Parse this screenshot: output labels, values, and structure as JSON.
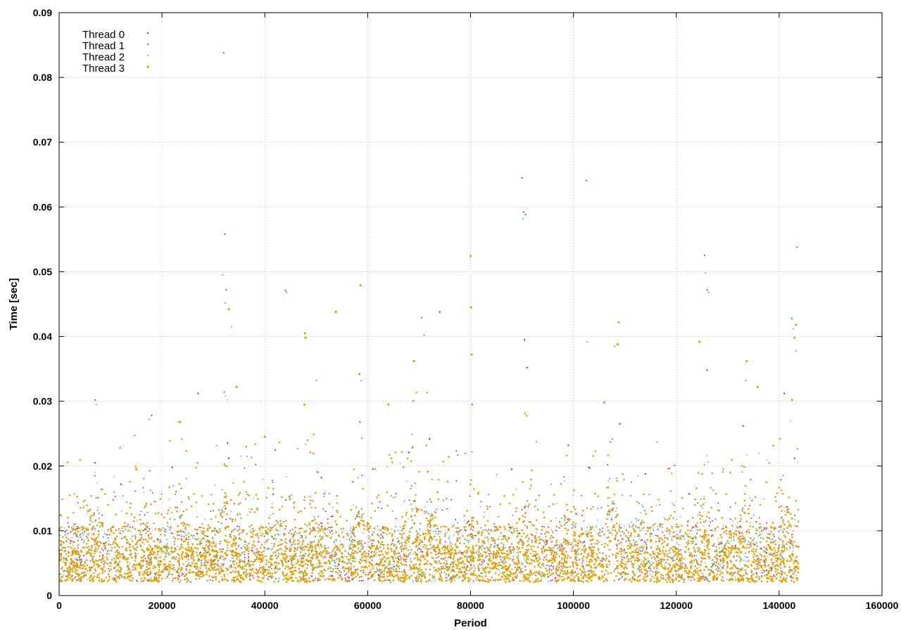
{
  "chart_data": {
    "type": "scatter",
    "title": "",
    "xlabel": "Period",
    "ylabel": "Time [sec]",
    "xlim": [
      0,
      160000
    ],
    "ylim": [
      0,
      0.09
    ],
    "x_ticks": [
      0,
      20000,
      40000,
      60000,
      80000,
      100000,
      120000,
      140000,
      160000
    ],
    "y_ticks": [
      0,
      0.01,
      0.02,
      0.03,
      0.04,
      0.05,
      0.06,
      0.07,
      0.08,
      0.09
    ],
    "x_tick_labels": [
      "0",
      "20000",
      "40000",
      "60000",
      "80000",
      "100000",
      "120000",
      "140000",
      "160000"
    ],
    "y_tick_labels": [
      "0",
      "0.01",
      "0.02",
      "0.03",
      "0.04",
      "0.05",
      "0.06",
      "0.07",
      "0.08",
      "0.09"
    ],
    "grid": true,
    "legend_position": "top-left",
    "series": [
      {
        "name": "Thread 0",
        "color": "#9400d3",
        "points": [
          [
            7000,
            0.0205
          ],
          [
            12000,
            0.0172
          ],
          [
            22000,
            0.0198
          ],
          [
            27000,
            0.0312
          ],
          [
            33000,
            0.0212
          ],
          [
            42000,
            0.0225
          ],
          [
            51000,
            0.0182
          ],
          [
            61000,
            0.0195
          ],
          [
            68000,
            0.0221
          ],
          [
            72000,
            0.0242
          ],
          [
            74000,
            0.0438
          ],
          [
            88000,
            0.0195
          ],
          [
            90500,
            0.0395
          ],
          [
            91000,
            0.0352
          ],
          [
            99000,
            0.0232
          ],
          [
            103000,
            0.0198
          ],
          [
            109000,
            0.0265
          ],
          [
            114000,
            0.0188
          ],
          [
            126000,
            0.0348
          ],
          [
            133000,
            0.0262
          ],
          [
            141000,
            0.0312
          ],
          [
            143000,
            0.0212
          ]
        ]
      },
      {
        "name": "Thread 1",
        "color": "#009e73",
        "points": [
          [
            7000,
            0.0302
          ],
          [
            18000,
            0.0278
          ],
          [
            32000,
            0.0838
          ],
          [
            32200,
            0.0558
          ],
          [
            32500,
            0.0472
          ],
          [
            44000,
            0.0471
          ],
          [
            58500,
            0.0268
          ],
          [
            70500,
            0.0429
          ],
          [
            90000,
            0.0645
          ],
          [
            90300,
            0.0592
          ],
          [
            90700,
            0.0588
          ],
          [
            102500,
            0.0641
          ],
          [
            125500,
            0.0525
          ],
          [
            126000,
            0.0472
          ],
          [
            143500,
            0.0538
          ],
          [
            142500,
            0.0428
          ]
        ]
      },
      {
        "name": "Thread 2",
        "color": "#56b4e9",
        "points": [
          [
            7200,
            0.0295
          ],
          [
            17500,
            0.0272
          ],
          [
            31800,
            0.0495
          ],
          [
            32300,
            0.0452
          ],
          [
            33500,
            0.0415
          ],
          [
            44200,
            0.0468
          ],
          [
            50000,
            0.0332
          ],
          [
            58700,
            0.0332
          ],
          [
            71000,
            0.0402
          ],
          [
            80200,
            0.0372
          ],
          [
            90200,
            0.0582
          ],
          [
            102700,
            0.0392
          ],
          [
            108000,
            0.0385
          ],
          [
            125700,
            0.0498
          ],
          [
            126300,
            0.0468
          ],
          [
            133500,
            0.0332
          ],
          [
            142800,
            0.0412
          ],
          [
            143300,
            0.0378
          ]
        ]
      },
      {
        "name": "Thread 3",
        "color": "#e69f00",
        "points": [
          [
            15000,
            0.0195
          ],
          [
            23500,
            0.0268
          ],
          [
            33000,
            0.0442
          ],
          [
            34500,
            0.0322
          ],
          [
            40000,
            0.0245
          ],
          [
            47800,
            0.0405
          ],
          [
            47900,
            0.0398
          ],
          [
            47700,
            0.0295
          ],
          [
            53800,
            0.0438
          ],
          [
            58600,
            0.0479
          ],
          [
            58400,
            0.0342
          ],
          [
            64000,
            0.0295
          ],
          [
            69000,
            0.0362
          ],
          [
            80000,
            0.0524
          ],
          [
            80100,
            0.0445
          ],
          [
            80200,
            0.0372
          ],
          [
            80300,
            0.0295
          ],
          [
            108800,
            0.0422
          ],
          [
            108600,
            0.0388
          ],
          [
            106000,
            0.0298
          ],
          [
            124500,
            0.0392
          ],
          [
            133700,
            0.0362
          ],
          [
            135800,
            0.0322
          ],
          [
            142500,
            0.0302
          ],
          [
            143000,
            0.0398
          ],
          [
            143300,
            0.0418
          ]
        ]
      }
    ]
  }
}
